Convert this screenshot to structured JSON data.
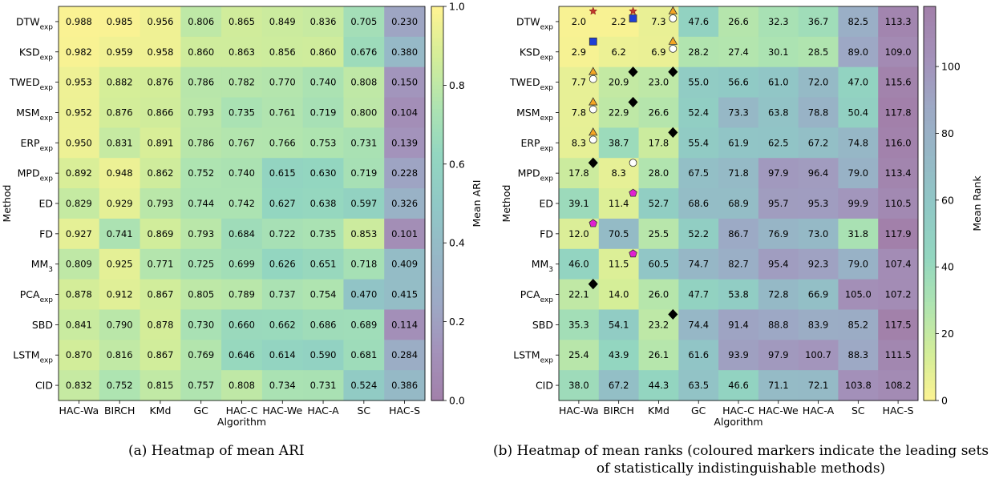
{
  "charts": [
    {
      "type": "heatmap",
      "colorbar_label": "Mean ARI",
      "colorbar_ticks": [
        "0.0",
        "0.2",
        "0.4",
        "0.6",
        "0.8",
        "1.0"
      ],
      "colorbar_range": [
        0,
        1
      ],
      "colorbar_reversed": false,
      "cell_format": "3dec",
      "markers": []
    },
    {
      "type": "heatmap",
      "colorbar_label": "Mean Rank",
      "colorbar_ticks": [
        "0",
        "20",
        "40",
        "60",
        "80",
        "100"
      ],
      "colorbar_range": [
        0,
        118
      ],
      "colorbar_reversed": true,
      "cell_format": "1dec",
      "markers": [
        {
          "row": 0,
          "col": 0,
          "shape": "star",
          "color": "#c0392b"
        },
        {
          "row": 0,
          "col": 1,
          "shape": "star",
          "color": "#c0392b"
        },
        {
          "row": 0,
          "col": 1,
          "shape": "square",
          "color": "#1f3fd6"
        },
        {
          "row": 0,
          "col": 2,
          "shape": "triangle",
          "color": "#f5a623"
        },
        {
          "row": 0,
          "col": 2,
          "shape": "circle",
          "color": "#ffffff"
        },
        {
          "row": 1,
          "col": 0,
          "shape": "square",
          "color": "#1f3fd6"
        },
        {
          "row": 1,
          "col": 2,
          "shape": "triangle",
          "color": "#f5a623"
        },
        {
          "row": 1,
          "col": 2,
          "shape": "circle",
          "color": "#ffffff"
        },
        {
          "row": 2,
          "col": 0,
          "shape": "triangle",
          "color": "#f5a623"
        },
        {
          "row": 2,
          "col": 0,
          "shape": "circle",
          "color": "#ffffff"
        },
        {
          "row": 2,
          "col": 1,
          "shape": "diamond",
          "color": "#000000"
        },
        {
          "row": 2,
          "col": 2,
          "shape": "diamond",
          "color": "#000000"
        },
        {
          "row": 3,
          "col": 0,
          "shape": "triangle",
          "color": "#f5a623"
        },
        {
          "row": 3,
          "col": 0,
          "shape": "circle",
          "color": "#ffffff"
        },
        {
          "row": 3,
          "col": 1,
          "shape": "diamond",
          "color": "#000000"
        },
        {
          "row": 4,
          "col": 0,
          "shape": "triangle",
          "color": "#f5a623"
        },
        {
          "row": 4,
          "col": 0,
          "shape": "circle",
          "color": "#ffffff"
        },
        {
          "row": 4,
          "col": 2,
          "shape": "diamond",
          "color": "#000000"
        },
        {
          "row": 5,
          "col": 0,
          "shape": "diamond",
          "color": "#000000"
        },
        {
          "row": 5,
          "col": 1,
          "shape": "circle",
          "color": "#ffffff"
        },
        {
          "row": 6,
          "col": 1,
          "shape": "pentagon",
          "color": "#e020d0"
        },
        {
          "row": 7,
          "col": 0,
          "shape": "pentagon",
          "color": "#e020d0"
        },
        {
          "row": 8,
          "col": 1,
          "shape": "pentagon",
          "color": "#e020d0"
        },
        {
          "row": 9,
          "col": 0,
          "shape": "diamond",
          "color": "#000000"
        },
        {
          "row": 10,
          "col": 2,
          "shape": "diamond",
          "color": "#000000"
        }
      ]
    }
  ],
  "chart_data": [
    {
      "type": "heatmap",
      "xlabel": "Algorithm",
      "ylabel": "Method",
      "x": [
        "HAC-Wa",
        "BIRCH",
        "KMd",
        "GC",
        "HAC-C",
        "HAC-We",
        "HAC-A",
        "SC",
        "HAC-S"
      ],
      "y": [
        {
          "base": "DTW",
          "sub": "exp"
        },
        {
          "base": "KSD",
          "sub": "exp"
        },
        {
          "base": "TWED",
          "sub": "exp"
        },
        {
          "base": "MSM",
          "sub": "exp"
        },
        {
          "base": "ERP",
          "sub": "exp"
        },
        {
          "base": "MPD",
          "sub": "exp"
        },
        {
          "base": "ED",
          "sub": ""
        },
        {
          "base": "FD",
          "sub": ""
        },
        {
          "base": "MM",
          "sub": "3"
        },
        {
          "base": "PCA",
          "sub": "exp"
        },
        {
          "base": "SBD",
          "sub": ""
        },
        {
          "base": "LSTM",
          "sub": "exp"
        },
        {
          "base": "CID",
          "sub": ""
        }
      ],
      "values": [
        [
          0.988,
          0.985,
          0.956,
          0.806,
          0.865,
          0.849,
          0.836,
          0.705,
          0.23
        ],
        [
          0.982,
          0.959,
          0.958,
          0.86,
          0.863,
          0.856,
          0.86,
          0.676,
          0.38
        ],
        [
          0.953,
          0.882,
          0.876,
          0.786,
          0.782,
          0.77,
          0.74,
          0.808,
          0.15
        ],
        [
          0.952,
          0.876,
          0.866,
          0.793,
          0.735,
          0.761,
          0.719,
          0.8,
          0.104
        ],
        [
          0.95,
          0.831,
          0.891,
          0.786,
          0.767,
          0.766,
          0.753,
          0.731,
          0.139
        ],
        [
          0.892,
          0.948,
          0.862,
          0.752,
          0.74,
          0.615,
          0.63,
          0.719,
          0.228
        ],
        [
          0.829,
          0.929,
          0.793,
          0.744,
          0.742,
          0.627,
          0.638,
          0.597,
          0.326
        ],
        [
          0.927,
          0.741,
          0.869,
          0.793,
          0.684,
          0.722,
          0.735,
          0.853,
          0.101
        ],
        [
          0.809,
          0.925,
          0.771,
          0.725,
          0.699,
          0.626,
          0.651,
          0.718,
          0.409
        ],
        [
          0.878,
          0.912,
          0.867,
          0.805,
          0.789,
          0.737,
          0.754,
          0.47,
          0.415
        ],
        [
          0.841,
          0.79,
          0.878,
          0.73,
          0.66,
          0.662,
          0.686,
          0.689,
          0.114
        ],
        [
          0.87,
          0.816,
          0.867,
          0.769,
          0.646,
          0.614,
          0.59,
          0.681,
          0.284
        ],
        [
          0.832,
          0.752,
          0.815,
          0.757,
          0.808,
          0.734,
          0.731,
          0.524,
          0.386
        ]
      ]
    },
    {
      "type": "heatmap",
      "xlabel": "Algorithm",
      "ylabel": "Method",
      "x": [
        "HAC-Wa",
        "BIRCH",
        "KMd",
        "GC",
        "HAC-C",
        "HAC-We",
        "HAC-A",
        "SC",
        "HAC-S"
      ],
      "y": [
        {
          "base": "DTW",
          "sub": "exp"
        },
        {
          "base": "KSD",
          "sub": "exp"
        },
        {
          "base": "TWED",
          "sub": "exp"
        },
        {
          "base": "MSM",
          "sub": "exp"
        },
        {
          "base": "ERP",
          "sub": "exp"
        },
        {
          "base": "MPD",
          "sub": "exp"
        },
        {
          "base": "ED",
          "sub": ""
        },
        {
          "base": "FD",
          "sub": ""
        },
        {
          "base": "MM",
          "sub": "3"
        },
        {
          "base": "PCA",
          "sub": "exp"
        },
        {
          "base": "SBD",
          "sub": ""
        },
        {
          "base": "LSTM",
          "sub": "exp"
        },
        {
          "base": "CID",
          "sub": ""
        }
      ],
      "values": [
        [
          2.0,
          2.2,
          7.3,
          47.6,
          26.6,
          32.3,
          36.7,
          82.5,
          113.3
        ],
        [
          2.9,
          6.2,
          6.9,
          28.2,
          27.4,
          30.1,
          28.5,
          89.0,
          109.0
        ],
        [
          7.7,
          20.9,
          23.0,
          55.0,
          56.6,
          61.0,
          72.0,
          47.0,
          115.6
        ],
        [
          7.8,
          22.9,
          26.6,
          52.4,
          73.3,
          63.8,
          78.8,
          50.4,
          117.8
        ],
        [
          8.3,
          38.7,
          17.8,
          55.4,
          61.9,
          62.5,
          67.2,
          74.8,
          116.0
        ],
        [
          17.8,
          8.3,
          28.0,
          67.5,
          71.8,
          97.9,
          96.4,
          79.0,
          113.4
        ],
        [
          39.1,
          11.4,
          52.7,
          68.6,
          68.9,
          95.7,
          95.3,
          99.9,
          110.5
        ],
        [
          12.0,
          70.5,
          25.5,
          52.2,
          86.7,
          76.9,
          73.0,
          31.8,
          117.9
        ],
        [
          46.0,
          11.5,
          60.5,
          74.7,
          82.7,
          95.4,
          92.3,
          79.0,
          107.4
        ],
        [
          22.1,
          14.0,
          26.0,
          47.7,
          53.8,
          72.8,
          66.9,
          105.0,
          107.2
        ],
        [
          35.3,
          54.1,
          23.2,
          74.4,
          91.4,
          88.8,
          83.9,
          85.2,
          117.5
        ],
        [
          25.4,
          43.9,
          26.1,
          61.6,
          93.9,
          97.9,
          100.7,
          88.3,
          111.5
        ],
        [
          38.0,
          67.2,
          44.3,
          63.5,
          46.6,
          71.1,
          72.1,
          103.8,
          108.2
        ]
      ]
    }
  ],
  "captions": {
    "a": "(a)  Heatmap of mean ARI",
    "b": "(b)  Heatmap of mean ranks (coloured markers indicate the leading sets of statistically indistinguishable methods)"
  }
}
